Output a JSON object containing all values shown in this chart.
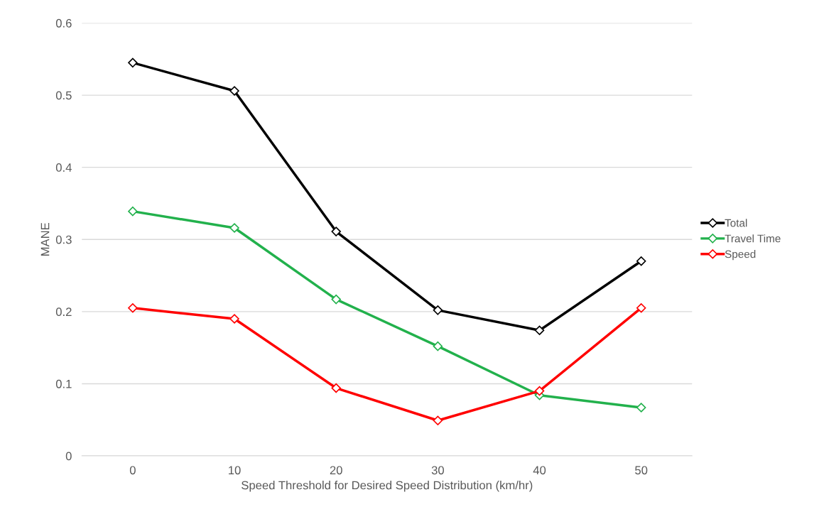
{
  "chart_data": {
    "type": "line",
    "xlabel": "Speed Threshold for Desired Speed Distribution (km/hr)",
    "ylabel": "MANE",
    "categories": [
      "0",
      "10",
      "20",
      "30",
      "40",
      "50"
    ],
    "series": [
      {
        "name": "Total",
        "color": "#000000",
        "values": [
          0.545,
          0.506,
          0.311,
          0.202,
          0.174,
          0.27
        ]
      },
      {
        "name": "Travel Time",
        "color": "#22b14c",
        "values": [
          0.339,
          0.316,
          0.217,
          0.152,
          0.084,
          0.067
        ]
      },
      {
        "name": "Speed",
        "color": "#ff0000",
        "values": [
          0.205,
          0.19,
          0.094,
          0.049,
          0.09,
          0.205
        ]
      }
    ],
    "ylim": [
      0,
      0.6
    ],
    "yticks": [
      0,
      0.1,
      0.2,
      0.3,
      0.4,
      0.5,
      0.6
    ],
    "grid": "y",
    "legend": "right",
    "marker": "diamond",
    "line_style": "solid"
  }
}
